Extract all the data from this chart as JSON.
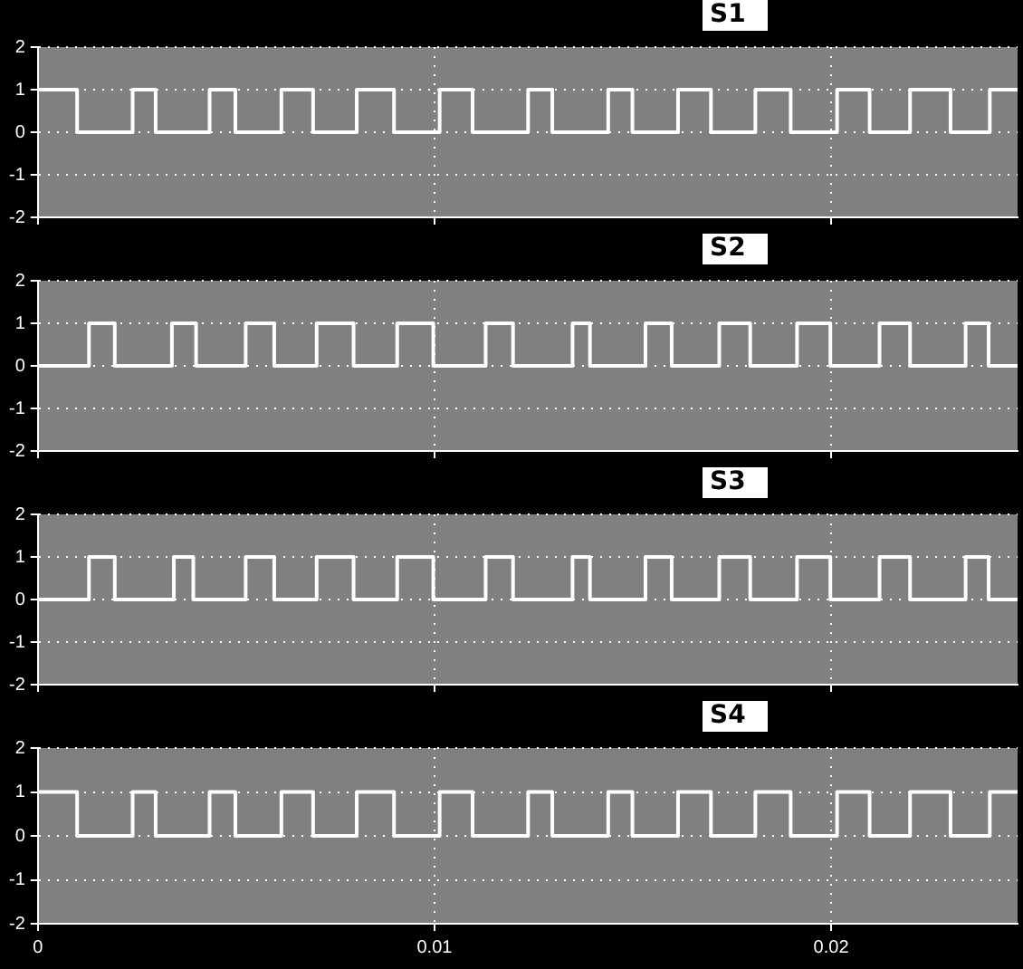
{
  "chart_data": [
    {
      "type": "step",
      "title": "S1",
      "xlim": [
        0,
        0.0247
      ],
      "xticks": [
        0,
        0.01,
        0.02
      ],
      "ylim": [
        -2,
        2
      ],
      "yticks": [
        -2,
        -1,
        0,
        1,
        2
      ],
      "grid": true,
      "marker": "none",
      "tick_labels": "y",
      "x": [
        0,
        0.00099,
        0.00239,
        0.00297,
        0.00433,
        0.00498,
        0.00614,
        0.00694,
        0.00804,
        0.00898,
        0.01013,
        0.01096,
        0.01236,
        0.01297,
        0.01438,
        0.01499,
        0.01614,
        0.01697,
        0.01809,
        0.01898,
        0.02015,
        0.02097,
        0.02199,
        0.02301,
        0.024,
        0.0247
      ],
      "series": [
        {
          "color": "#ffffff",
          "values": [
            1,
            0,
            1,
            0,
            1,
            0,
            1,
            0,
            1,
            0,
            1,
            0,
            1,
            0,
            1,
            0,
            1,
            0,
            1,
            0,
            1,
            0,
            1,
            0,
            1,
            1
          ]
        }
      ]
    },
    {
      "type": "step",
      "title": "S2",
      "xlim": [
        0,
        0.0247
      ],
      "xticks": [
        0,
        0.01,
        0.02
      ],
      "ylim": [
        -2,
        2
      ],
      "yticks": [
        -2,
        -1,
        0,
        1,
        2
      ],
      "grid": true,
      "marker": "none",
      "tick_labels": "y",
      "x": [
        0,
        0.00129,
        0.00194,
        0.00338,
        0.00399,
        0.00524,
        0.00596,
        0.00703,
        0.00796,
        0.00906,
        0.00997,
        0.01129,
        0.01198,
        0.01348,
        0.01392,
        0.01532,
        0.01598,
        0.01718,
        0.01796,
        0.01914,
        0.01998,
        0.02122,
        0.02199,
        0.02339,
        0.02397,
        0.0247
      ],
      "series": [
        {
          "color": "#ffffff",
          "values": [
            0,
            1,
            0,
            1,
            0,
            1,
            0,
            1,
            0,
            1,
            0,
            1,
            0,
            1,
            0,
            1,
            0,
            1,
            0,
            1,
            0,
            1,
            0,
            1,
            0,
            0
          ]
        }
      ]
    },
    {
      "type": "step",
      "title": "S3",
      "xlim": [
        0,
        0.0247
      ],
      "xticks": [
        0,
        0.01,
        0.02
      ],
      "ylim": [
        -2,
        2
      ],
      "yticks": [
        -2,
        -1,
        0,
        1,
        2
      ],
      "grid": true,
      "marker": "none",
      "tick_labels": "y",
      "x": [
        0,
        0.00129,
        0.00194,
        0.00343,
        0.00392,
        0.00524,
        0.00596,
        0.00703,
        0.00796,
        0.00906,
        0.00997,
        0.01129,
        0.01198,
        0.01348,
        0.01392,
        0.01532,
        0.01598,
        0.01718,
        0.01796,
        0.01914,
        0.01998,
        0.02122,
        0.02199,
        0.02339,
        0.02397,
        0.0247
      ],
      "series": [
        {
          "color": "#ffffff",
          "values": [
            0,
            1,
            0,
            1,
            0,
            1,
            0,
            1,
            0,
            1,
            0,
            1,
            0,
            1,
            0,
            1,
            0,
            1,
            0,
            1,
            0,
            1,
            0,
            1,
            0,
            0
          ]
        }
      ]
    },
    {
      "type": "step",
      "title": "S4",
      "xlim": [
        0,
        0.0247
      ],
      "xticks": [
        0,
        0.01,
        0.02
      ],
      "ylim": [
        -2,
        2
      ],
      "yticks": [
        -2,
        -1,
        0,
        1,
        2
      ],
      "grid": true,
      "marker": "none",
      "x": [
        0,
        0.00099,
        0.00239,
        0.00297,
        0.00433,
        0.00498,
        0.00614,
        0.00694,
        0.00804,
        0.00898,
        0.01013,
        0.01096,
        0.01236,
        0.01297,
        0.01438,
        0.01499,
        0.01614,
        0.01697,
        0.01809,
        0.01898,
        0.02015,
        0.02097,
        0.02199,
        0.02301,
        0.024,
        0.0247
      ],
      "series": [
        {
          "color": "#ffffff",
          "values": [
            1,
            0,
            1,
            0,
            1,
            0,
            1,
            0,
            1,
            0,
            1,
            0,
            1,
            0,
            1,
            0,
            1,
            0,
            1,
            0,
            1,
            0,
            1,
            0,
            1,
            1
          ]
        }
      ]
    }
  ]
}
